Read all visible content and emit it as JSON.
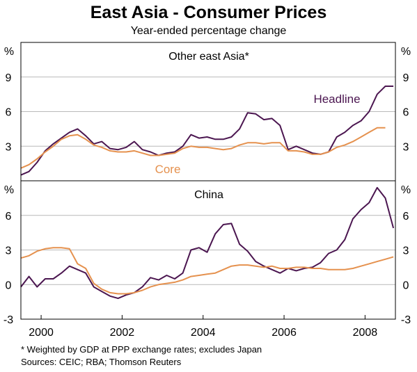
{
  "chart_data": {
    "type": "line",
    "title": "East Asia - Consumer Prices",
    "subtitle": "Year-ended percentage change",
    "x_axis": {
      "range": [
        1999.5,
        2008.75
      ],
      "ticks": [
        "2000",
        "2002",
        "2004",
        "2006",
        "2008"
      ],
      "tick_positions": [
        2000,
        2002,
        2004,
        2006,
        2008
      ]
    },
    "colors": {
      "headline": "#4b1650",
      "core": "#e5914e"
    },
    "panels": [
      {
        "title": "Other east Asia*",
        "unit": "%",
        "ylim": [
          0,
          12
        ],
        "yticks": [
          "3",
          "6",
          "9"
        ],
        "ytick_values": [
          3,
          6,
          9
        ],
        "series": [
          {
            "name": "Headline",
            "key": "headline",
            "x": [
              1999.5,
              1999.7,
              1999.9,
              2000.1,
              2000.3,
              2000.5,
              2000.7,
              2000.9,
              2001.1,
              2001.3,
              2001.5,
              2001.7,
              2001.9,
              2002.1,
              2002.3,
              2002.5,
              2002.7,
              2002.9,
              2003.1,
              2003.3,
              2003.5,
              2003.7,
              2003.9,
              2004.1,
              2004.3,
              2004.5,
              2004.7,
              2004.9,
              2005.1,
              2005.3,
              2005.5,
              2005.7,
              2005.9,
              2006.1,
              2006.3,
              2006.5,
              2006.7,
              2006.9,
              2007.1,
              2007.3,
              2007.5,
              2007.7,
              2007.9,
              2008.1,
              2008.3,
              2008.5,
              2008.7
            ],
            "y": [
              0.5,
              0.8,
              1.6,
              2.6,
              3.2,
              3.7,
              4.2,
              4.5,
              3.9,
              3.2,
              3.4,
              2.8,
              2.7,
              2.9,
              3.4,
              2.7,
              2.5,
              2.2,
              2.4,
              2.5,
              3.0,
              4.0,
              3.7,
              3.8,
              3.6,
              3.6,
              3.8,
              4.5,
              5.9,
              5.8,
              5.3,
              5.4,
              4.8,
              2.7,
              3.0,
              2.7,
              2.4,
              2.3,
              2.5,
              3.8,
              4.2,
              4.8,
              5.2,
              6.0,
              7.5,
              8.2,
              8.2
            ]
          },
          {
            "name": "Core",
            "key": "core",
            "x": [
              1999.5,
              1999.7,
              1999.9,
              2000.1,
              2000.3,
              2000.5,
              2000.7,
              2000.9,
              2001.1,
              2001.3,
              2001.5,
              2001.7,
              2001.9,
              2002.1,
              2002.3,
              2002.5,
              2002.7,
              2002.9,
              2003.1,
              2003.3,
              2003.5,
              2003.7,
              2003.9,
              2004.1,
              2004.3,
              2004.5,
              2004.7,
              2004.9,
              2005.1,
              2005.3,
              2005.5,
              2005.7,
              2005.9,
              2006.1,
              2006.3,
              2006.5,
              2006.7,
              2006.9,
              2007.1,
              2007.3,
              2007.5,
              2007.7,
              2007.9,
              2008.1,
              2008.3,
              2008.5
            ],
            "y": [
              1.1,
              1.4,
              1.9,
              2.5,
              3.0,
              3.6,
              3.9,
              4.0,
              3.6,
              3.1,
              2.9,
              2.6,
              2.5,
              2.5,
              2.6,
              2.4,
              2.2,
              2.2,
              2.3,
              2.4,
              2.8,
              3.0,
              2.9,
              2.9,
              2.8,
              2.7,
              2.8,
              3.1,
              3.3,
              3.3,
              3.2,
              3.3,
              3.3,
              2.6,
              2.6,
              2.5,
              2.3,
              2.3,
              2.5,
              2.9,
              3.1,
              3.4,
              3.8,
              4.2,
              4.6,
              4.6
            ]
          }
        ]
      },
      {
        "title": "China",
        "unit": "%",
        "ylim": [
          -3,
          9
        ],
        "yticks": [
          "-3",
          "0",
          "3",
          "6"
        ],
        "ytick_values": [
          -3,
          0,
          3,
          6
        ],
        "series": [
          {
            "name": "Headline",
            "key": "headline",
            "x": [
              1999.5,
              1999.7,
              1999.9,
              2000.1,
              2000.3,
              2000.5,
              2000.7,
              2000.9,
              2001.1,
              2001.3,
              2001.5,
              2001.7,
              2001.9,
              2002.1,
              2002.3,
              2002.5,
              2002.7,
              2002.9,
              2003.1,
              2003.3,
              2003.5,
              2003.7,
              2003.9,
              2004.1,
              2004.3,
              2004.5,
              2004.7,
              2004.9,
              2005.1,
              2005.3,
              2005.5,
              2005.7,
              2005.9,
              2006.1,
              2006.3,
              2006.5,
              2006.7,
              2006.9,
              2007.1,
              2007.3,
              2007.5,
              2007.7,
              2007.9,
              2008.1,
              2008.3,
              2008.5,
              2008.7
            ],
            "y": [
              -0.2,
              0.7,
              -0.2,
              0.5,
              0.5,
              1.0,
              1.6,
              1.3,
              1.0,
              -0.2,
              -0.6,
              -1.0,
              -1.2,
              -0.9,
              -0.7,
              -0.2,
              0.6,
              0.4,
              0.8,
              0.5,
              1.0,
              3.0,
              3.2,
              2.8,
              4.4,
              5.2,
              5.3,
              3.5,
              2.9,
              2.0,
              1.6,
              1.3,
              1.0,
              1.4,
              1.2,
              1.4,
              1.5,
              1.9,
              2.7,
              3.0,
              3.9,
              5.7,
              6.5,
              7.1,
              8.4,
              7.5,
              4.9
            ]
          },
          {
            "name": "Core",
            "key": "core",
            "x": [
              1999.5,
              1999.7,
              1999.9,
              2000.1,
              2000.3,
              2000.5,
              2000.7,
              2000.9,
              2001.1,
              2001.3,
              2001.5,
              2001.7,
              2001.9,
              2002.1,
              2002.3,
              2002.5,
              2002.7,
              2002.9,
              2003.1,
              2003.3,
              2003.5,
              2003.7,
              2003.9,
              2004.1,
              2004.3,
              2004.5,
              2004.7,
              2004.9,
              2005.1,
              2005.3,
              2005.5,
              2005.7,
              2005.9,
              2006.1,
              2006.3,
              2006.5,
              2006.7,
              2006.9,
              2007.1,
              2007.3,
              2007.5,
              2007.7,
              2007.9,
              2008.1,
              2008.3,
              2008.5,
              2008.7
            ],
            "y": [
              2.3,
              2.5,
              2.9,
              3.1,
              3.2,
              3.2,
              3.1,
              1.8,
              1.4,
              0.1,
              -0.4,
              -0.7,
              -0.8,
              -0.8,
              -0.7,
              -0.5,
              -0.2,
              0.0,
              0.1,
              0.2,
              0.4,
              0.7,
              0.8,
              0.9,
              1.0,
              1.3,
              1.6,
              1.7,
              1.7,
              1.6,
              1.5,
              1.6,
              1.4,
              1.4,
              1.5,
              1.5,
              1.4,
              1.4,
              1.3,
              1.3,
              1.3,
              1.4,
              1.6,
              1.8,
              2.0,
              2.2,
              2.4
            ]
          }
        ],
        "labels": []
      }
    ]
  },
  "series_labels": {
    "headline": "Headline",
    "core": "Core"
  },
  "footnotes": {
    "note": "*   Weighted by GDP at PPP exchange rates; excludes Japan",
    "sources": "Sources: CEIC; RBA; Thomson Reuters"
  }
}
